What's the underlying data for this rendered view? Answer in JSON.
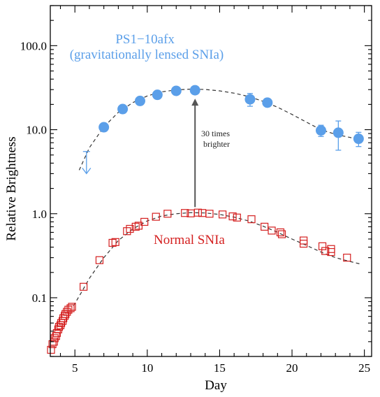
{
  "chart_data": {
    "type": "scatter",
    "xlabel": "Day",
    "ylabel": "Relative Brightness",
    "xlim": [
      3.3,
      25.5
    ],
    "ylim": [
      0.02,
      300
    ],
    "y_scale": "log",
    "x_ticks": [
      5,
      10,
      15,
      20,
      25
    ],
    "x_tick_labels": [
      "5",
      "10",
      "15",
      "20",
      "25"
    ],
    "y_ticks": [
      0.1,
      1.0,
      10.0,
      100.0
    ],
    "y_tick_labels": [
      "0.1",
      "1.0",
      "10.0",
      "100.0"
    ],
    "colors": {
      "lensed": "#5b9fe9",
      "normal": "#d42020",
      "arrow": "#555555",
      "fit": "#333333"
    },
    "series": [
      {
        "name_lines": [
          "PS1−10afx",
          "(gravitationally lensed SNIa)"
        ],
        "marker": "filled-circle",
        "color": "#5b9fe9",
        "points": [
          {
            "x": 7.0,
            "y": 10.7,
            "err": 0.8
          },
          {
            "x": 8.3,
            "y": 17.6,
            "err": 1.0
          },
          {
            "x": 9.5,
            "y": 22.0,
            "err": 1.2
          },
          {
            "x": 10.7,
            "y": 26.0,
            "err": 1.3
          },
          {
            "x": 12.0,
            "y": 29.0,
            "err": 1.4
          },
          {
            "x": 13.3,
            "y": 29.5,
            "err": 1.5
          },
          {
            "x": 17.1,
            "y": 23.0,
            "err": 4.0
          },
          {
            "x": 18.3,
            "y": 21.0,
            "err": 1.2
          },
          {
            "x": 22.0,
            "y": 9.8,
            "err": 1.5
          },
          {
            "x": 23.2,
            "y": 9.2,
            "err": 3.5
          },
          {
            "x": 24.6,
            "y": 7.8,
            "err": 1.5
          }
        ],
        "upper_limit": {
          "x": 5.8,
          "y": 5.5,
          "y_low": 3.0
        },
        "fit_curve": [
          [
            5.3,
            3.3
          ],
          [
            6.0,
            6.1
          ],
          [
            7.0,
            10.8
          ],
          [
            8.0,
            16.1
          ],
          [
            9.0,
            21.0
          ],
          [
            10.0,
            25.2
          ],
          [
            11.0,
            28.2
          ],
          [
            12.0,
            29.8
          ],
          [
            13.0,
            30.4
          ],
          [
            14.0,
            30.1
          ],
          [
            15.0,
            29.0
          ],
          [
            16.0,
            27.2
          ],
          [
            17.0,
            24.8
          ],
          [
            18.0,
            21.8
          ],
          [
            19.0,
            18.5
          ],
          [
            20.0,
            15.2
          ],
          [
            21.0,
            12.3
          ],
          [
            22.0,
            10.0
          ],
          [
            23.0,
            8.8
          ],
          [
            24.0,
            8.1
          ],
          [
            24.8,
            7.5
          ]
        ]
      },
      {
        "name": "Normal SNIa",
        "marker": "open-square",
        "color": "#d42020",
        "points": [
          {
            "x": 3.35,
            "y": 0.024
          },
          {
            "x": 3.45,
            "y": 0.028
          },
          {
            "x": 3.55,
            "y": 0.03
          },
          {
            "x": 3.6,
            "y": 0.033
          },
          {
            "x": 3.7,
            "y": 0.035
          },
          {
            "x": 3.75,
            "y": 0.038
          },
          {
            "x": 3.85,
            "y": 0.042
          },
          {
            "x": 3.9,
            "y": 0.045
          },
          {
            "x": 4.0,
            "y": 0.047
          },
          {
            "x": 4.05,
            "y": 0.05
          },
          {
            "x": 4.15,
            "y": 0.053
          },
          {
            "x": 4.2,
            "y": 0.057
          },
          {
            "x": 4.3,
            "y": 0.061
          },
          {
            "x": 4.35,
            "y": 0.064
          },
          {
            "x": 4.45,
            "y": 0.068
          },
          {
            "x": 4.55,
            "y": 0.072
          },
          {
            "x": 4.7,
            "y": 0.075
          },
          {
            "x": 4.8,
            "y": 0.078
          },
          {
            "x": 5.6,
            "y": 0.135
          },
          {
            "x": 6.7,
            "y": 0.28
          },
          {
            "x": 7.6,
            "y": 0.45
          },
          {
            "x": 7.8,
            "y": 0.46
          },
          {
            "x": 8.6,
            "y": 0.62
          },
          {
            "x": 8.8,
            "y": 0.66
          },
          {
            "x": 9.2,
            "y": 0.7
          },
          {
            "x": 9.4,
            "y": 0.72
          },
          {
            "x": 9.8,
            "y": 0.8
          },
          {
            "x": 10.6,
            "y": 0.92
          },
          {
            "x": 11.4,
            "y": 1.0
          },
          {
            "x": 12.6,
            "y": 1.02
          },
          {
            "x": 13.0,
            "y": 1.01
          },
          {
            "x": 13.5,
            "y": 1.03
          },
          {
            "x": 13.8,
            "y": 1.02
          },
          {
            "x": 14.3,
            "y": 1.0
          },
          {
            "x": 15.2,
            "y": 0.98
          },
          {
            "x": 15.9,
            "y": 0.93
          },
          {
            "x": 16.2,
            "y": 0.9
          },
          {
            "x": 17.2,
            "y": 0.86
          },
          {
            "x": 18.1,
            "y": 0.7
          },
          {
            "x": 18.6,
            "y": 0.63
          },
          {
            "x": 19.2,
            "y": 0.6
          },
          {
            "x": 19.3,
            "y": 0.57
          },
          {
            "x": 20.8,
            "y": 0.48
          },
          {
            "x": 20.8,
            "y": 0.44
          },
          {
            "x": 22.1,
            "y": 0.41
          },
          {
            "x": 22.3,
            "y": 0.36
          },
          {
            "x": 22.7,
            "y": 0.38
          },
          {
            "x": 22.7,
            "y": 0.35
          },
          {
            "x": 23.8,
            "y": 0.3
          }
        ],
        "fit_curve": [
          [
            4.9,
            0.08
          ],
          [
            5.5,
            0.12
          ],
          [
            6.0,
            0.17
          ],
          [
            7.0,
            0.3
          ],
          [
            8.0,
            0.48
          ],
          [
            9.0,
            0.66
          ],
          [
            10.0,
            0.82
          ],
          [
            11.0,
            0.94
          ],
          [
            12.0,
            1.0
          ],
          [
            13.0,
            1.03
          ],
          [
            14.0,
            1.02
          ],
          [
            15.0,
            0.98
          ],
          [
            16.0,
            0.91
          ],
          [
            17.0,
            0.82
          ],
          [
            18.0,
            0.71
          ],
          [
            19.0,
            0.6
          ],
          [
            20.0,
            0.5
          ],
          [
            21.0,
            0.42
          ],
          [
            22.0,
            0.35
          ],
          [
            23.0,
            0.3
          ],
          [
            24.0,
            0.27
          ],
          [
            24.8,
            0.25
          ]
        ]
      }
    ],
    "annotations": {
      "arrow": {
        "x": 13.3,
        "y_from": 1.03,
        "y_to": 29.5
      },
      "arrow_text_lines": [
        "30 times",
        "brighter"
      ]
    }
  }
}
